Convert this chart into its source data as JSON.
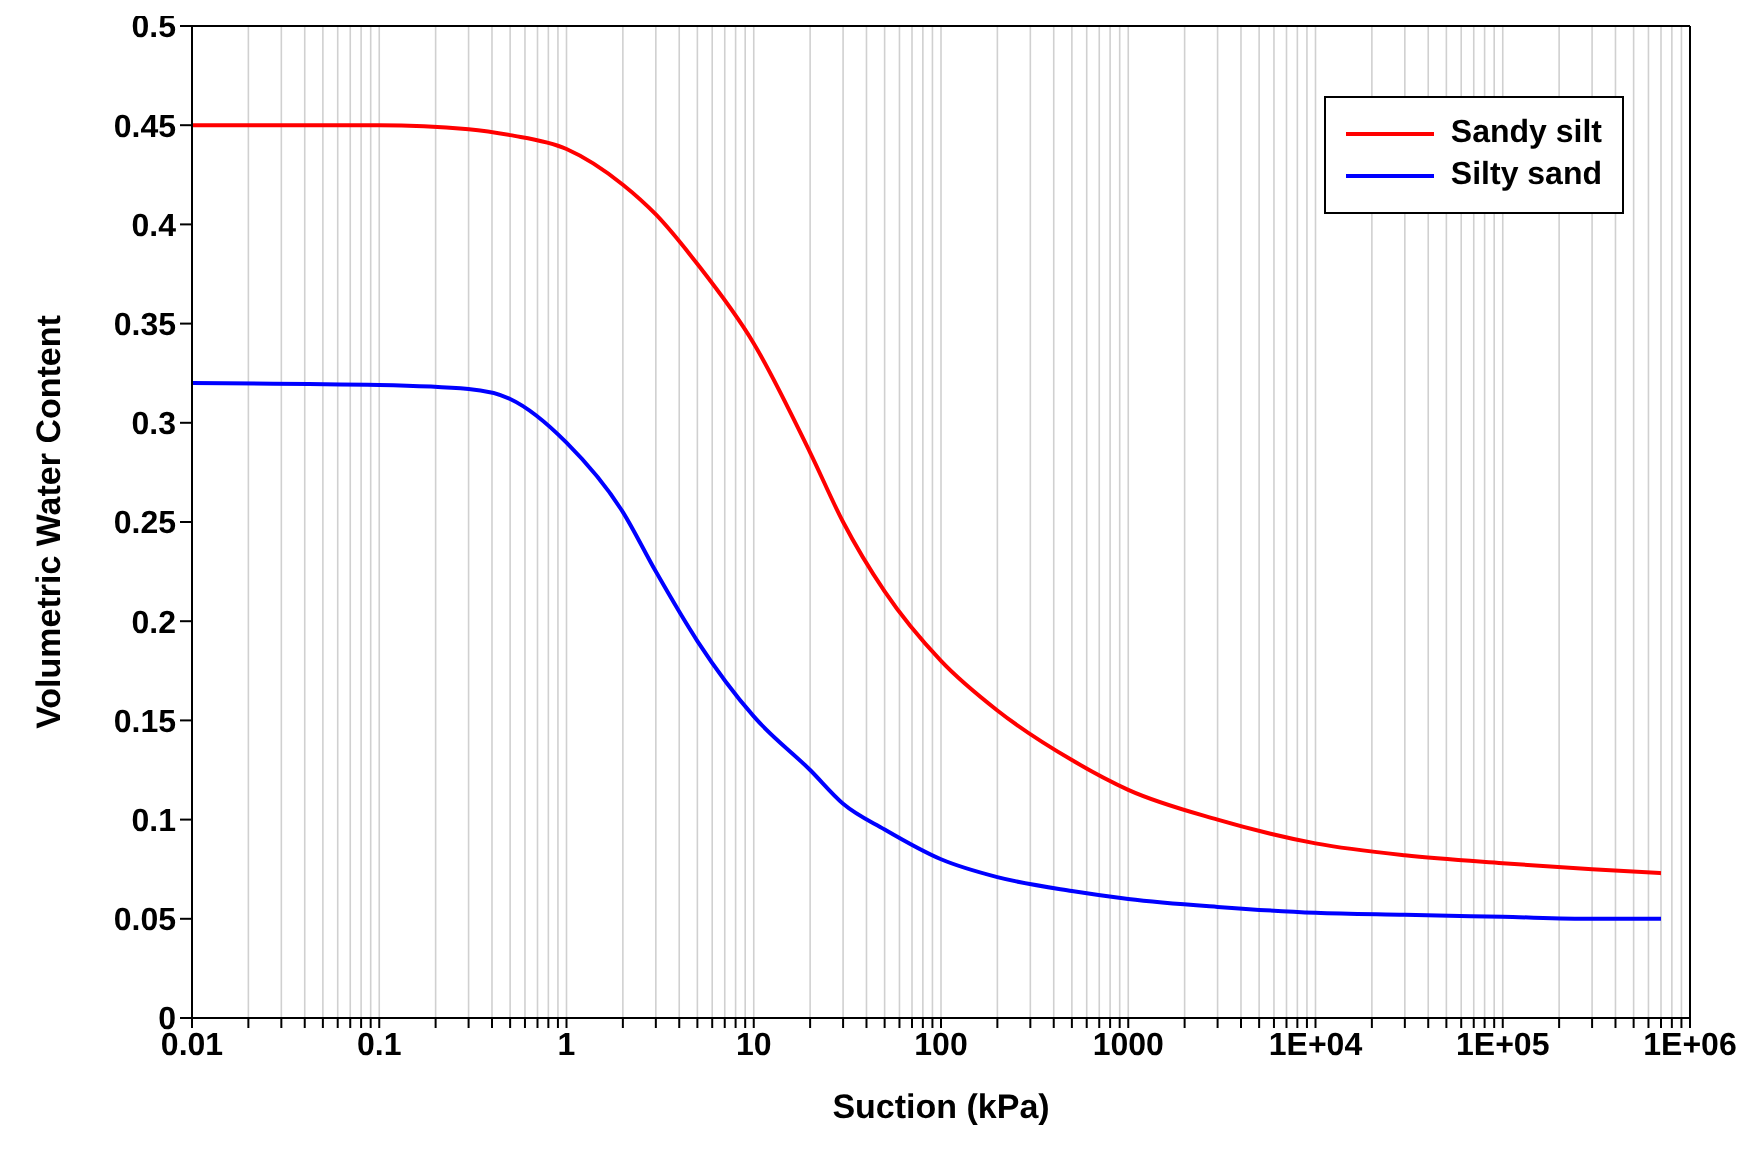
{
  "chart_data": {
    "type": "line",
    "xlabel": "Suction (kPa)",
    "ylabel": "Volumetric Water Content",
    "log": "x",
    "grid": "x",
    "legend": "top right",
    "marker": "none",
    "line_style": "solid",
    "xlim": [
      0.01,
      1000000
    ],
    "ylim": [
      0,
      0.5
    ],
    "xticks": [
      0.01,
      {
        "value": 0.02,
        "label": null
      },
      {
        "value": 0.03,
        "label": null
      },
      {
        "value": 0.04,
        "label": null
      },
      {
        "value": 0.05,
        "label": null
      },
      {
        "value": 0.06,
        "label": null
      },
      {
        "value": 0.07,
        "label": null
      },
      {
        "value": 0.08,
        "label": null
      },
      {
        "value": 0.09,
        "label": null
      },
      0.1,
      {
        "value": 0.2,
        "label": null
      },
      {
        "value": 0.3,
        "label": null
      },
      {
        "value": 0.4,
        "label": null
      },
      {
        "value": 0.5,
        "label": null
      },
      {
        "value": 0.6,
        "label": null
      },
      {
        "value": 0.7,
        "label": null
      },
      {
        "value": 0.8,
        "label": null
      },
      {
        "value": 0.9,
        "label": null
      },
      1,
      {
        "value": 2,
        "label": null
      },
      {
        "value": 3,
        "label": null
      },
      {
        "value": 4,
        "label": null
      },
      {
        "value": 5,
        "label": null
      },
      {
        "value": 6,
        "label": null
      },
      {
        "value": 7,
        "label": null
      },
      {
        "value": 8,
        "label": null
      },
      {
        "value": 9,
        "label": null
      },
      10,
      {
        "value": 20,
        "label": null
      },
      {
        "value": 30,
        "label": null
      },
      {
        "value": 40,
        "label": null
      },
      {
        "value": 50,
        "label": null
      },
      {
        "value": 60,
        "label": null
      },
      {
        "value": 70,
        "label": null
      },
      {
        "value": 80,
        "label": null
      },
      {
        "value": 90,
        "label": null
      },
      100,
      {
        "value": 200,
        "label": null
      },
      {
        "value": 300,
        "label": null
      },
      {
        "value": 400,
        "label": null
      },
      {
        "value": 500,
        "label": null
      },
      {
        "value": 600,
        "label": null
      },
      {
        "value": 700,
        "label": null
      },
      {
        "value": 800,
        "label": null
      },
      {
        "value": 900,
        "label": null
      },
      1000,
      {
        "value": 2000,
        "label": null
      },
      {
        "value": 3000,
        "label": null
      },
      {
        "value": 4000,
        "label": null
      },
      {
        "value": 5000,
        "label": null
      },
      {
        "value": 6000,
        "label": null
      },
      {
        "value": 7000,
        "label": null
      },
      {
        "value": 8000,
        "label": null
      },
      {
        "value": 9000,
        "label": null
      },
      {
        "value": 10000,
        "label": "1E+04"
      },
      {
        "value": 20000,
        "label": null
      },
      {
        "value": 30000,
        "label": null
      },
      {
        "value": 40000,
        "label": null
      },
      {
        "value": 50000,
        "label": null
      },
      {
        "value": 60000,
        "label": null
      },
      {
        "value": 70000,
        "label": null
      },
      {
        "value": 80000,
        "label": null
      },
      {
        "value": 90000,
        "label": null
      },
      {
        "value": 100000,
        "label": "1E+05"
      },
      {
        "value": 200000,
        "label": null
      },
      {
        "value": 300000,
        "label": null
      },
      {
        "value": 400000,
        "label": null
      },
      {
        "value": 500000,
        "label": null
      },
      {
        "value": 600000,
        "label": null
      },
      {
        "value": 700000,
        "label": null
      },
      {
        "value": 800000,
        "label": null
      },
      {
        "value": 900000,
        "label": null
      },
      {
        "value": 1000000,
        "label": "1E+06"
      }
    ],
    "yticks": [
      0,
      0.05,
      0.1,
      0.15,
      0.2,
      0.25,
      0.3,
      0.35,
      0.4,
      0.45,
      0.5
    ],
    "x": [
      0.01,
      0.1,
      0.3,
      0.5,
      1,
      2,
      3,
      5,
      10,
      20,
      30,
      50,
      100,
      200,
      500,
      1000,
      3000,
      10000,
      30000,
      100000,
      300000,
      700000
    ],
    "series": [
      {
        "name": "Sandy silt",
        "color": "#ff0000",
        "values": [
          0.45,
          0.45,
          0.448,
          0.445,
          0.438,
          0.42,
          0.405,
          0.38,
          0.34,
          0.285,
          0.25,
          0.215,
          0.18,
          0.155,
          0.13,
          0.115,
          0.1,
          0.088,
          0.082,
          0.078,
          0.075,
          0.073
        ]
      },
      {
        "name": "Silty sand",
        "color": "#0000ff",
        "values": [
          0.32,
          0.319,
          0.317,
          0.312,
          0.29,
          0.255,
          0.225,
          0.19,
          0.152,
          0.125,
          0.108,
          0.095,
          0.08,
          0.071,
          0.064,
          0.06,
          0.056,
          0.053,
          0.052,
          0.051,
          0.05,
          0.05
        ]
      }
    ]
  }
}
